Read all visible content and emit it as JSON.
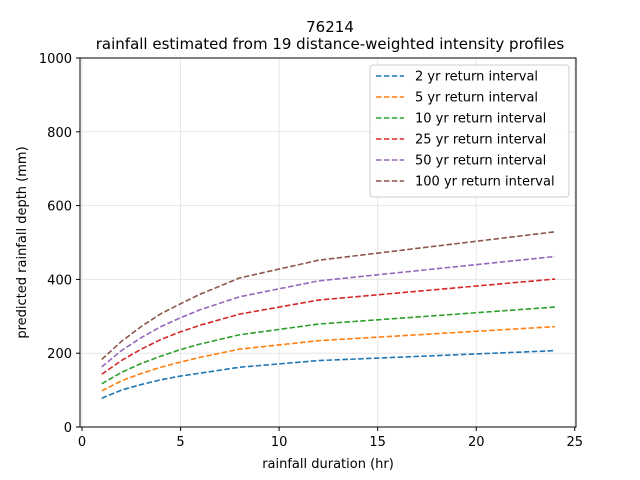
{
  "chart_data": {
    "type": "line",
    "title": "76214",
    "subtitle": "rainfall estimated from 19 distance-weighted intensity profiles",
    "xlabel": "rainfall duration (hr)",
    "ylabel": "predicted rainfall depth (mm)",
    "xlim": [
      0,
      25
    ],
    "ylim": [
      0,
      1000
    ],
    "xticks": [
      0,
      5,
      10,
      15,
      20,
      25
    ],
    "yticks": [
      0,
      200,
      400,
      600,
      800,
      1000
    ],
    "grid": true,
    "legend_position": "top-right",
    "x": [
      1,
      2,
      3,
      4,
      5,
      6,
      8,
      12,
      24
    ],
    "series": [
      {
        "name": "2 yr return interval",
        "color": "#1f77b4",
        "values": [
          78,
          100,
          115,
          128,
          138,
          146,
          162,
          180,
          207
        ]
      },
      {
        "name": "5 yr return interval",
        "color": "#ff7f0e",
        "values": [
          98,
          125,
          145,
          162,
          176,
          189,
          211,
          234,
          272
        ]
      },
      {
        "name": "10 yr return interval",
        "color": "#2ca02c",
        "values": [
          117,
          148,
          172,
          192,
          210,
          225,
          250,
          279,
          325
        ]
      },
      {
        "name": "25 yr return interval",
        "color": "#d62728",
        "values": [
          143,
          180,
          211,
          237,
          258,
          276,
          306,
          344,
          401
        ]
      },
      {
        "name": "50 yr return interval",
        "color": "#9467bd",
        "values": [
          163,
          207,
          242,
          272,
          296,
          318,
          353,
          396,
          462
        ]
      },
      {
        "name": "100 yr return interval",
        "color": "#8c564b",
        "values": [
          183,
          232,
          272,
          307,
          334,
          360,
          404,
          452,
          529
        ]
      }
    ]
  }
}
